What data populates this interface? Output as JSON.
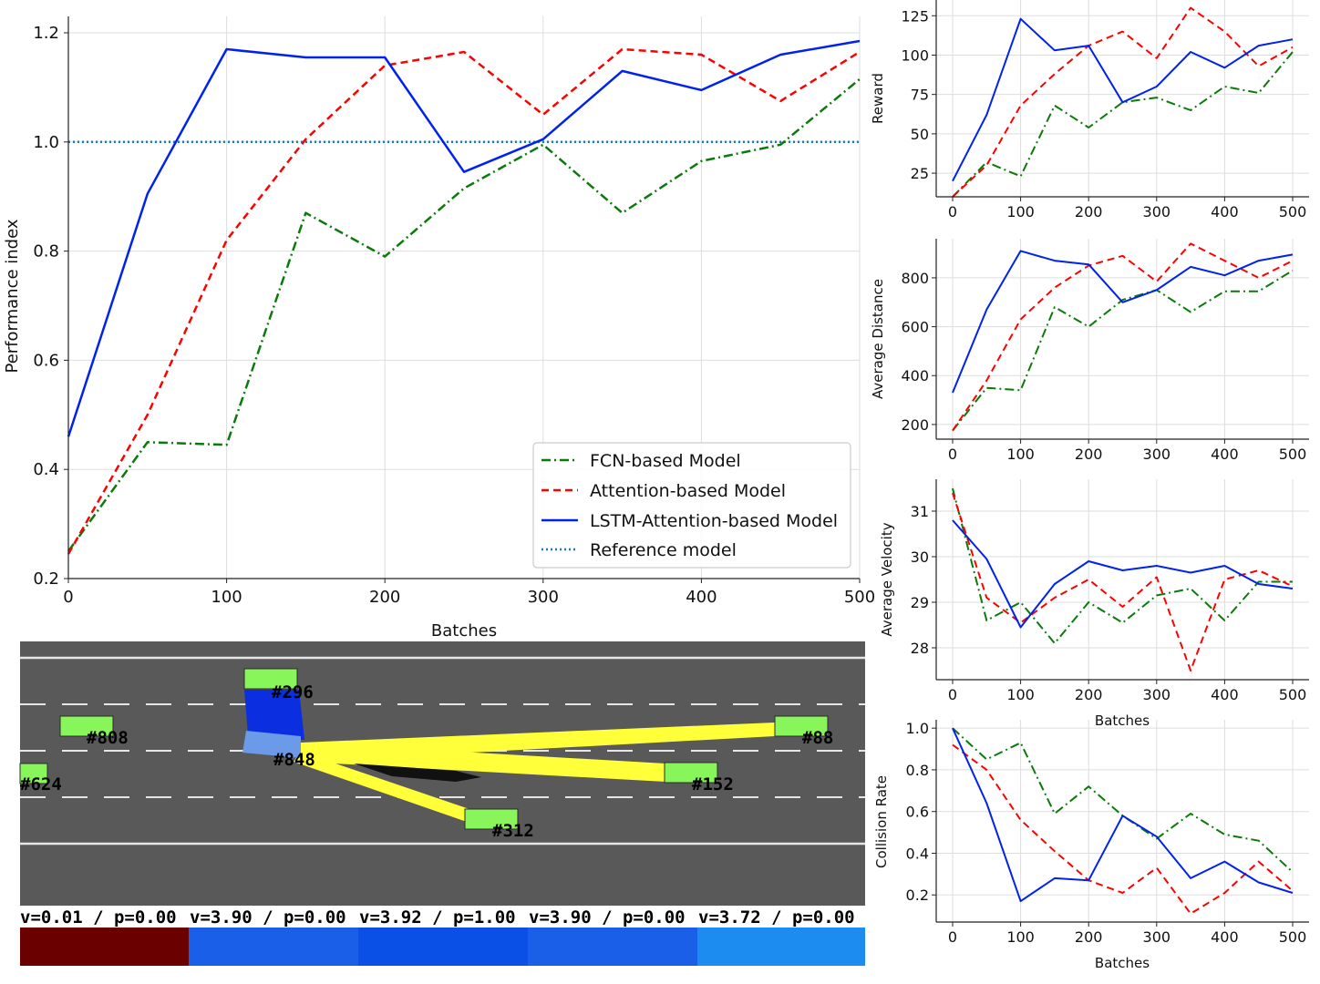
{
  "chart_data": [
    {
      "id": "main",
      "type": "line",
      "title": "",
      "xlabel": "Batches",
      "ylabel": "Performance index",
      "xlim": [
        0,
        500
      ],
      "ylim": [
        0.2,
        1.2
      ],
      "xticks": [
        0,
        100,
        200,
        300,
        400,
        500
      ],
      "yticks": [
        0.2,
        0.4,
        0.6,
        0.8,
        1.0,
        1.2
      ],
      "ytick_labels": [
        "0.2",
        "0.4",
        "0.6",
        "0.8",
        "1.0",
        "1.2"
      ],
      "legend_position": "lower-right",
      "grid": true,
      "x": [
        0,
        50,
        100,
        150,
        200,
        250,
        300,
        350,
        400,
        450,
        500
      ],
      "series": [
        {
          "name": "FCN-based Model",
          "color": "#0a7a0a",
          "style": "dashdot",
          "values": [
            0.25,
            0.45,
            0.445,
            0.87,
            0.79,
            0.915,
            0.995,
            0.87,
            0.965,
            0.995,
            1.115
          ]
        },
        {
          "name": "Attention-based Model",
          "color": "#ff0000",
          "style": "dashed",
          "values": [
            0.245,
            0.5,
            0.82,
            1.005,
            1.14,
            1.165,
            1.05,
            1.17,
            1.16,
            1.075,
            1.165
          ]
        },
        {
          "name": "LSTM-Attention-based Model",
          "color": "#0022ee",
          "style": "solid",
          "values": [
            0.46,
            0.905,
            1.17,
            1.155,
            1.155,
            0.945,
            1.005,
            1.13,
            1.095,
            1.16,
            1.185
          ]
        },
        {
          "name": "Reference model",
          "color": "#1f77b4",
          "style": "dotted",
          "values": [
            1.0,
            1.0,
            1.0,
            1.0,
            1.0,
            1.0,
            1.0,
            1.0,
            1.0,
            1.0,
            1.0
          ]
        }
      ]
    },
    {
      "id": "reward",
      "type": "line",
      "xlabel": "",
      "ylabel": "Reward",
      "xlim": [
        0,
        500
      ],
      "ylim": [
        10,
        135
      ],
      "xticks": [
        0,
        100,
        200,
        300,
        400,
        500
      ],
      "yticks": [
        25,
        50,
        75,
        100,
        125
      ],
      "grid": true,
      "x": [
        0,
        50,
        100,
        150,
        200,
        250,
        300,
        350,
        400,
        450,
        500
      ],
      "series": [
        {
          "name": "FCN-based Model",
          "color": "#0a7a0a",
          "style": "dashdot",
          "values": [
            10,
            32,
            23,
            68,
            54,
            70,
            73,
            65,
            80,
            76,
            102
          ]
        },
        {
          "name": "Attention-based Model",
          "color": "#ff0000",
          "style": "dashed",
          "values": [
            10,
            30,
            68,
            88,
            106,
            115,
            98,
            130,
            115,
            93,
            105
          ]
        },
        {
          "name": "LSTM-Attention-based Model",
          "color": "#0022ee",
          "style": "solid",
          "values": [
            20,
            62,
            123,
            103,
            106,
            70,
            80,
            102,
            92,
            106,
            110
          ]
        }
      ]
    },
    {
      "id": "distance",
      "type": "line",
      "xlabel": "",
      "ylabel": "Average Distance",
      "xlim": [
        0,
        500
      ],
      "ylim": [
        140,
        960
      ],
      "xticks": [
        0,
        100,
        200,
        300,
        400,
        500
      ],
      "yticks": [
        200,
        400,
        600,
        800
      ],
      "grid": true,
      "x": [
        0,
        50,
        100,
        150,
        200,
        250,
        300,
        350,
        400,
        450,
        500
      ],
      "series": [
        {
          "name": "FCN-based Model",
          "color": "#0a7a0a",
          "style": "dashdot",
          "values": [
            175,
            350,
            340,
            680,
            600,
            710,
            750,
            660,
            745,
            745,
            830
          ]
        },
        {
          "name": "Attention-based Model",
          "color": "#ff0000",
          "style": "dashed",
          "values": [
            175,
            380,
            630,
            760,
            850,
            890,
            785,
            940,
            870,
            800,
            870
          ]
        },
        {
          "name": "LSTM-Attention-based Model",
          "color": "#0022ee",
          "style": "solid",
          "values": [
            330,
            670,
            910,
            870,
            855,
            700,
            750,
            845,
            810,
            870,
            895
          ]
        }
      ]
    },
    {
      "id": "velocity",
      "type": "line",
      "xlabel": "Batches",
      "ylabel": "Average Velocity",
      "xlim": [
        0,
        500
      ],
      "ylim": [
        27.3,
        31.7
      ],
      "xticks": [
        0,
        100,
        200,
        300,
        400,
        500
      ],
      "yticks": [
        28,
        29,
        30,
        31
      ],
      "grid": true,
      "x": [
        0,
        50,
        100,
        150,
        200,
        250,
        300,
        350,
        400,
        450,
        500
      ],
      "series": [
        {
          "name": "FCN-based Model",
          "color": "#0a7a0a",
          "style": "dashdot",
          "values": [
            31.5,
            28.6,
            29.0,
            28.1,
            29.0,
            28.55,
            29.15,
            29.3,
            28.6,
            29.45,
            29.45
          ]
        },
        {
          "name": "Attention-based Model",
          "color": "#ff0000",
          "style": "dashed",
          "values": [
            31.4,
            29.1,
            28.55,
            29.1,
            29.5,
            28.9,
            29.55,
            27.5,
            29.5,
            29.7,
            29.35
          ]
        },
        {
          "name": "LSTM-Attention-based Model",
          "color": "#0022ee",
          "style": "solid",
          "values": [
            30.8,
            29.95,
            28.45,
            29.4,
            29.9,
            29.7,
            29.8,
            29.65,
            29.8,
            29.4,
            29.3
          ]
        }
      ]
    },
    {
      "id": "collision",
      "type": "line",
      "xlabel": "Batches",
      "ylabel": "Collision Rate",
      "xlim": [
        0,
        500
      ],
      "ylim": [
        0.07,
        1.04
      ],
      "xticks": [
        0,
        100,
        200,
        300,
        400,
        500
      ],
      "yticks": [
        0.2,
        0.4,
        0.6,
        0.8,
        1.0
      ],
      "ytick_labels": [
        "0.2",
        "0.4",
        "0.6",
        "0.8",
        "1.0"
      ],
      "grid": true,
      "x": [
        0,
        50,
        100,
        150,
        200,
        250,
        300,
        350,
        400,
        450,
        500
      ],
      "series": [
        {
          "name": "FCN-based Model",
          "color": "#0a7a0a",
          "style": "dashdot",
          "values": [
            1.0,
            0.85,
            0.93,
            0.59,
            0.72,
            0.58,
            0.47,
            0.59,
            0.49,
            0.46,
            0.31
          ]
        },
        {
          "name": "Attention-based Model",
          "color": "#ff0000",
          "style": "dashed",
          "values": [
            0.92,
            0.8,
            0.56,
            0.41,
            0.27,
            0.21,
            0.33,
            0.11,
            0.21,
            0.36,
            0.22
          ]
        },
        {
          "name": "LSTM-Attention-based Model",
          "color": "#0022ee",
          "style": "solid",
          "values": [
            1.0,
            0.64,
            0.17,
            0.28,
            0.27,
            0.58,
            0.48,
            0.28,
            0.36,
            0.26,
            0.21
          ]
        }
      ]
    }
  ],
  "simulation": {
    "vehicles": [
      {
        "id": "ego",
        "label": "#848"
      },
      {
        "id": "v296",
        "label": "#296"
      },
      {
        "id": "v808",
        "label": "#808"
      },
      {
        "id": "v624",
        "label": "#624"
      },
      {
        "id": "v88",
        "label": "#88"
      },
      {
        "id": "v152",
        "label": "#152"
      },
      {
        "id": "v312",
        "label": "#312"
      }
    ],
    "status_bar": [
      {
        "text": "v=0.01 / p=0.00",
        "color": "#6b0000"
      },
      {
        "text": "v=3.90 / p=0.00",
        "color": "#1a5fe8"
      },
      {
        "text": "v=3.92 / p=1.00",
        "color": "#0a4fe6"
      },
      {
        "text": "v=3.90 / p=0.00",
        "color": "#1a5fe8"
      },
      {
        "text": "v=3.72 / p=0.00",
        "color": "#1c8cf0"
      }
    ],
    "colors": {
      "road": "#595959",
      "vehicle": "#88f55a",
      "ego_vehicle": "#0a2ee0",
      "attention": "#ffff3a"
    }
  }
}
